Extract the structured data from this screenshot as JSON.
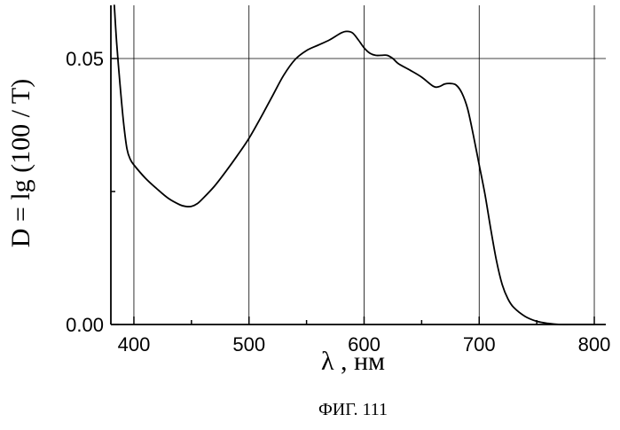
{
  "chart_data": {
    "type": "line",
    "title": "",
    "xlabel": "λ , нм",
    "ylabel": "D = lg (100 / T)",
    "caption": "ФИГ. 111",
    "xlim": [
      380,
      810
    ],
    "ylim": [
      0,
      0.06
    ],
    "x_ticks": [
      {
        "value": 400,
        "label": "400"
      },
      {
        "value": 500,
        "label": "500"
      },
      {
        "value": 600,
        "label": "600"
      },
      {
        "value": 700,
        "label": "700"
      },
      {
        "value": 800,
        "label": "800"
      }
    ],
    "y_ticks": [
      {
        "value": 0.0,
        "label": "0.00"
      },
      {
        "value": 0.05,
        "label": "0.05"
      }
    ],
    "grid": true,
    "series": [
      {
        "x": [
          383,
          385,
          388,
          391,
          394,
          397,
          400,
          410,
          420,
          430,
          440,
          445,
          450,
          455,
          460,
          470,
          480,
          490,
          500,
          510,
          520,
          530,
          540,
          550,
          560,
          570,
          580,
          585,
          590,
          595,
          600,
          605,
          610,
          615,
          620,
          625,
          630,
          640,
          650,
          660,
          665,
          670,
          675,
          680,
          685,
          690,
          695,
          700,
          705,
          710,
          715,
          720,
          725,
          730,
          740,
          750,
          760,
          770,
          780,
          790,
          800
        ],
        "y": [
          0.06,
          0.053,
          0.045,
          0.038,
          0.033,
          0.031,
          0.03,
          0.0275,
          0.0255,
          0.0237,
          0.0225,
          0.0222,
          0.0222,
          0.0227,
          0.0237,
          0.026,
          0.0288,
          0.0318,
          0.035,
          0.0388,
          0.0428,
          0.0468,
          0.0498,
          0.0515,
          0.0525,
          0.0535,
          0.0548,
          0.0551,
          0.0548,
          0.0535,
          0.052,
          0.051,
          0.0506,
          0.0506,
          0.0506,
          0.05,
          0.049,
          0.0478,
          0.0465,
          0.0448,
          0.0447,
          0.0452,
          0.0453,
          0.045,
          0.0435,
          0.0405,
          0.0355,
          0.03,
          0.0245,
          0.018,
          0.012,
          0.0075,
          0.0048,
          0.0032,
          0.0015,
          0.0006,
          0.0002,
          0.0,
          0.0,
          0.0,
          0.0
        ]
      }
    ]
  }
}
